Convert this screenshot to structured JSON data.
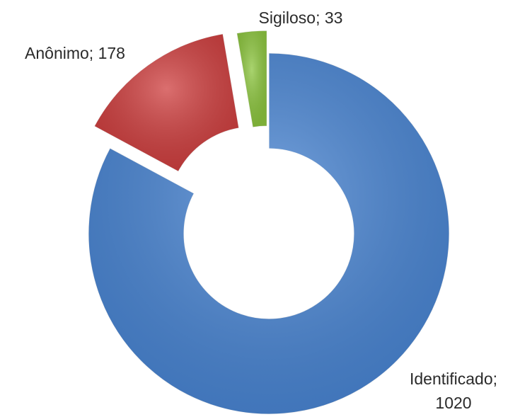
{
  "chart_data": {
    "type": "donut",
    "categories": [
      "Identificado",
      "Anônimo",
      "Sigiloso"
    ],
    "values": [
      1020,
      178,
      33
    ],
    "value_labels": [
      "Identificado; 1020",
      "Anônimo; 178",
      "Sigiloso; 33"
    ],
    "colors": [
      "#4a86d4",
      "#cf3f3f",
      "#8dc63f"
    ]
  }
}
